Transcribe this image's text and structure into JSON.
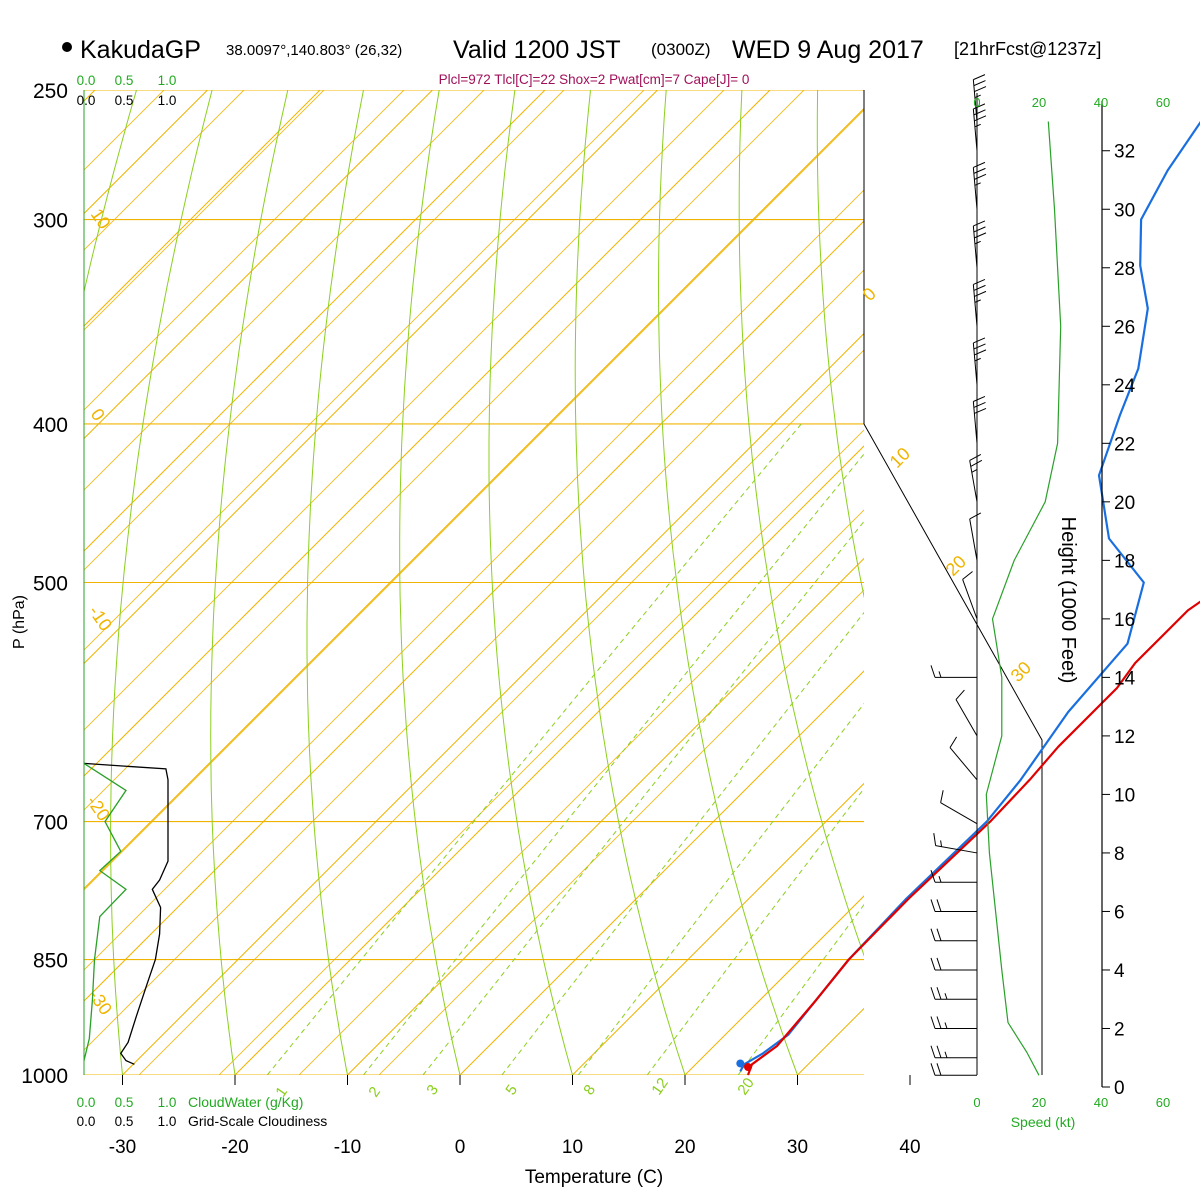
{
  "header": {
    "station": "KakudaGP",
    "coords": "38.0097°,140.803° (26,32)",
    "valid_label": "Valid 1200 JST",
    "utc": "(0300Z)",
    "date": "WED 9 Aug 2017",
    "forecast": "[21hrFcst@1237z]",
    "indices": "Plcl=972 Tlcl[C]=22 Shox=2 Pwat[cm]=7 Cape[J]= 0"
  },
  "colors": {
    "temperature": "#e00000",
    "dewpoint": "#1a6fe0",
    "isobar_isotherm": "#f0b400",
    "dry_adiabat": "#8ccf1e",
    "mixing_ratio": "#8ccf1e",
    "cloud_water": "#2aa02a",
    "label_green": "#22aa22",
    "indices_text": "#a0105a"
  },
  "chart_data": {
    "type": "skew-t",
    "xlabel": "Temperature (C)",
    "ylabel": "P (hPa)",
    "y2label": "Height (1000 Feet)",
    "x_ticks": [
      -30,
      -20,
      -10,
      0,
      10,
      20,
      30,
      40
    ],
    "p_ticks": [
      250,
      300,
      400,
      500,
      700,
      850,
      1000
    ],
    "height_ticks": [
      0,
      2,
      4,
      6,
      8,
      10,
      12,
      14,
      16,
      18,
      20,
      22,
      24,
      26,
      28,
      30,
      32
    ],
    "isotherm_labels": [
      "10",
      "0",
      "-10",
      "-20",
      "-30",
      "0",
      "10",
      "20",
      "30"
    ],
    "mixing_ratio_labels": [
      "1",
      "2",
      "3",
      "5",
      "8",
      "12",
      "20"
    ],
    "temperature_profile": [
      {
        "p": 1000,
        "t": 25.6
      },
      {
        "p": 985,
        "t": 25.0
      },
      {
        "p": 960,
        "t": 25.6
      },
      {
        "p": 900,
        "t": 25.0
      },
      {
        "p": 850,
        "t": 24.3
      },
      {
        "p": 780,
        "t": 24.2
      },
      {
        "p": 700,
        "t": 24.6
      },
      {
        "p": 660,
        "t": 24.4
      },
      {
        "p": 630,
        "t": 24.0
      },
      {
        "p": 580,
        "t": 24.0
      },
      {
        "p": 560,
        "t": 23.4
      },
      {
        "p": 520,
        "t": 23.4
      },
      {
        "p": 505,
        "t": 24.2
      },
      {
        "p": 470,
        "t": 23.0
      },
      {
        "p": 440,
        "t": 21.0
      },
      {
        "p": 400,
        "t": 19.0
      },
      {
        "p": 370,
        "t": 17.0
      },
      {
        "p": 340,
        "t": 15.0
      },
      {
        "p": 300,
        "t": 13.0
      },
      {
        "p": 270,
        "t": 11.5
      },
      {
        "p": 260,
        "t": 10.5
      }
    ],
    "dewpoint_profile": [
      {
        "p": 995,
        "t": 24.6
      },
      {
        "p": 985,
        "t": 24.3
      },
      {
        "p": 970,
        "t": 25.0
      },
      {
        "p": 945,
        "t": 25.6
      },
      {
        "p": 900,
        "t": 25.0
      },
      {
        "p": 850,
        "t": 24.3
      },
      {
        "p": 780,
        "t": 24.0
      },
      {
        "p": 700,
        "t": 24.3
      },
      {
        "p": 660,
        "t": 23.6
      },
      {
        "p": 600,
        "t": 21.8
      },
      {
        "p": 545,
        "t": 21.0
      },
      {
        "p": 500,
        "t": 17.0
      },
      {
        "p": 470,
        "t": 10.0
      },
      {
        "p": 430,
        "t": 3.5
      },
      {
        "p": 395,
        "t": 0.0
      },
      {
        "p": 370,
        "t": -2.5
      },
      {
        "p": 340,
        "t": -7.0
      },
      {
        "p": 320,
        "t": -11.5
      },
      {
        "p": 300,
        "t": -15.5
      },
      {
        "p": 280,
        "t": -17.5
      },
      {
        "p": 260,
        "t": -19.0
      }
    ],
    "wind_profile": [
      {
        "h": 0.4,
        "speed": 20,
        "dir": 270
      },
      {
        "h": 1.0,
        "speed": 25,
        "dir": 270
      },
      {
        "h": 2.0,
        "speed": 25,
        "dir": 270
      },
      {
        "h": 3.0,
        "speed": 25,
        "dir": 270
      },
      {
        "h": 4.0,
        "speed": 20,
        "dir": 270
      },
      {
        "h": 5.0,
        "speed": 20,
        "dir": 270
      },
      {
        "h": 6.0,
        "speed": 20,
        "dir": 270
      },
      {
        "h": 7.0,
        "speed": 15,
        "dir": 270
      },
      {
        "h": 8.0,
        "speed": 15,
        "dir": 280
      },
      {
        "h": 9.0,
        "speed": 10,
        "dir": 300
      },
      {
        "h": 10.5,
        "speed": 10,
        "dir": 320
      },
      {
        "h": 12.0,
        "speed": 10,
        "dir": 330
      },
      {
        "h": 14.0,
        "speed": 15,
        "dir": 270
      },
      {
        "h": 16.0,
        "speed": 10,
        "dir": 340
      },
      {
        "h": 18.0,
        "speed": 10,
        "dir": 350
      },
      {
        "h": 20.0,
        "speed": 25,
        "dir": 350
      },
      {
        "h": 22.0,
        "speed": 30,
        "dir": 355
      },
      {
        "h": 24.0,
        "speed": 35,
        "dir": 355
      },
      {
        "h": 26.0,
        "speed": 35,
        "dir": 355
      },
      {
        "h": 28.0,
        "speed": 35,
        "dir": 355
      },
      {
        "h": 30.0,
        "speed": 35,
        "dir": 355
      },
      {
        "h": 32.0,
        "speed": 35,
        "dir": 355
      },
      {
        "h": 33.0,
        "speed": 35,
        "dir": 355
      }
    ],
    "speed_axis": {
      "label": "Speed (kt)",
      "ticks": [
        0,
        20,
        40,
        60
      ]
    },
    "cloud_axis": {
      "ticks": [
        "0.0",
        "0.5",
        "1.0"
      ],
      "cloudwater_label": "CloudWater (g/Kg)",
      "cloudiness_label": "Grid-Scale Cloudiness"
    },
    "cloudiness_profile": [
      {
        "p": 985,
        "c": 0.48
      },
      {
        "p": 980,
        "c": 0.4
      },
      {
        "p": 970,
        "c": 0.35
      },
      {
        "p": 955,
        "c": 0.42
      },
      {
        "p": 920,
        "c": 0.5
      },
      {
        "p": 880,
        "c": 0.6
      },
      {
        "p": 850,
        "c": 0.68
      },
      {
        "p": 820,
        "c": 0.72
      },
      {
        "p": 790,
        "c": 0.73
      },
      {
        "p": 770,
        "c": 0.65
      },
      {
        "p": 760,
        "c": 0.72
      },
      {
        "p": 740,
        "c": 0.8
      },
      {
        "p": 700,
        "c": 0.8
      },
      {
        "p": 660,
        "c": 0.8
      },
      {
        "p": 650,
        "c": 0.78
      },
      {
        "p": 645,
        "c": 0.0
      }
    ],
    "cloudwater_profile": [
      {
        "p": 980,
        "c": 0.0
      },
      {
        "p": 950,
        "c": 0.05
      },
      {
        "p": 900,
        "c": 0.08
      },
      {
        "p": 850,
        "c": 0.1
      },
      {
        "p": 800,
        "c": 0.15
      },
      {
        "p": 770,
        "c": 0.4
      },
      {
        "p": 750,
        "c": 0.15
      },
      {
        "p": 730,
        "c": 0.35
      },
      {
        "p": 700,
        "c": 0.2
      },
      {
        "p": 670,
        "c": 0.4
      },
      {
        "p": 645,
        "c": 0.0
      }
    ],
    "wind_speed_profile": [
      {
        "h": 0.4,
        "s": 20
      },
      {
        "h": 1.2,
        "s": 16
      },
      {
        "h": 2.2,
        "s": 10
      },
      {
        "h": 4,
        "s": 8
      },
      {
        "h": 6,
        "s": 6
      },
      {
        "h": 8,
        "s": 4
      },
      {
        "h": 10,
        "s": 3
      },
      {
        "h": 12,
        "s": 8
      },
      {
        "h": 14,
        "s": 8
      },
      {
        "h": 16,
        "s": 5
      },
      {
        "h": 18,
        "s": 12
      },
      {
        "h": 20,
        "s": 22
      },
      {
        "h": 22,
        "s": 26
      },
      {
        "h": 26,
        "s": 27
      },
      {
        "h": 30,
        "s": 25
      },
      {
        "h": 33,
        "s": 23
      }
    ]
  }
}
